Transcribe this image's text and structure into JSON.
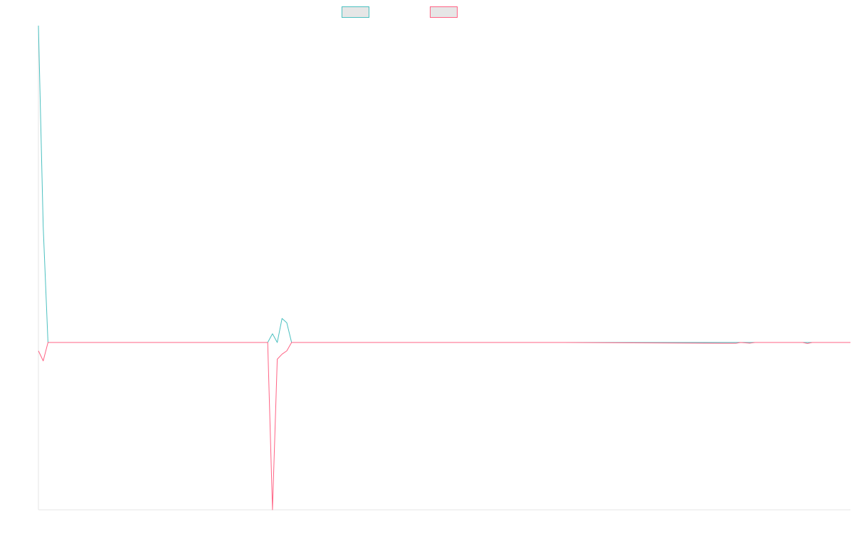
{
  "chart_data": {
    "type": "line",
    "title": "",
    "xlabel": "",
    "ylabel": "",
    "grid": false,
    "legend_position": "top-center",
    "x_count": 171,
    "ylim": [
      -1,
      1.45
    ],
    "series": [
      {
        "color": "#4bc0c0",
        "points": [
          [
            0,
            1.45
          ],
          [
            1,
            0.53
          ],
          [
            2,
            0.0
          ],
          [
            48,
            0.0
          ],
          [
            49,
            0.04
          ],
          [
            50,
            0.0
          ],
          [
            51,
            0.11
          ],
          [
            52,
            0.09
          ],
          [
            53,
            0.0
          ],
          [
            170,
            0.0
          ]
        ]
      },
      {
        "color": "#ff6384",
        "points": [
          [
            0,
            -0.05
          ],
          [
            1,
            -0.11
          ],
          [
            2,
            0.0
          ],
          [
            11,
            0.0
          ],
          [
            48,
            0.0
          ],
          [
            49,
            -1.0
          ],
          [
            50,
            -0.1
          ],
          [
            51,
            -0.07
          ],
          [
            52,
            -0.05
          ],
          [
            53,
            0.0
          ],
          [
            66,
            0.0
          ],
          [
            71,
            0.0
          ],
          [
            76,
            0.0
          ],
          [
            110,
            0.0
          ],
          [
            146,
            -0.005
          ],
          [
            147,
            0.0
          ],
          [
            149,
            -0.004
          ],
          [
            150,
            0.0
          ],
          [
            160,
            0.0
          ],
          [
            161,
            -0.006
          ],
          [
            162,
            0.0
          ],
          [
            170,
            0.0
          ]
        ]
      }
    ]
  }
}
